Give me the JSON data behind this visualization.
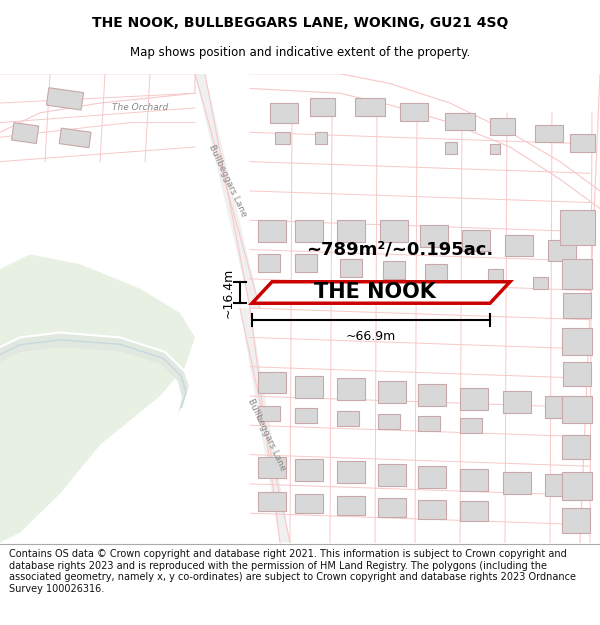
{
  "title_line1": "THE NOOK, BULLBEGGARS LANE, WOKING, GU21 4SQ",
  "title_line2": "Map shows position and indicative extent of the property.",
  "footer_text": "Contains OS data © Crown copyright and database right 2021. This information is subject to Crown copyright and database rights 2023 and is reproduced with the permission of HM Land Registry. The polygons (including the associated geometry, namely x, y co-ordinates) are subject to Crown copyright and database rights 2023 Ordnance Survey 100026316.",
  "area_label": "~789m²/~0.195ac.",
  "width_label": "~66.9m",
  "height_label": "~16.4m",
  "property_label": "THE NOOK",
  "map_bg": "#ffffff",
  "road_color": "#f7c8c8",
  "building_fill": "#d8d8d8",
  "building_edge": "#c8a8a8",
  "property_fill": "#ffffff",
  "property_edge": "#cc0000",
  "green_fill": "#e8f0e4",
  "green_fill2": "#dce8d8",
  "lane_fill": "#e8ece8",
  "title_fontsize": 10,
  "subtitle_fontsize": 8.5,
  "footer_fontsize": 7.0,
  "map_label_color": "#888888",
  "map_label_fontsize": 6.5
}
